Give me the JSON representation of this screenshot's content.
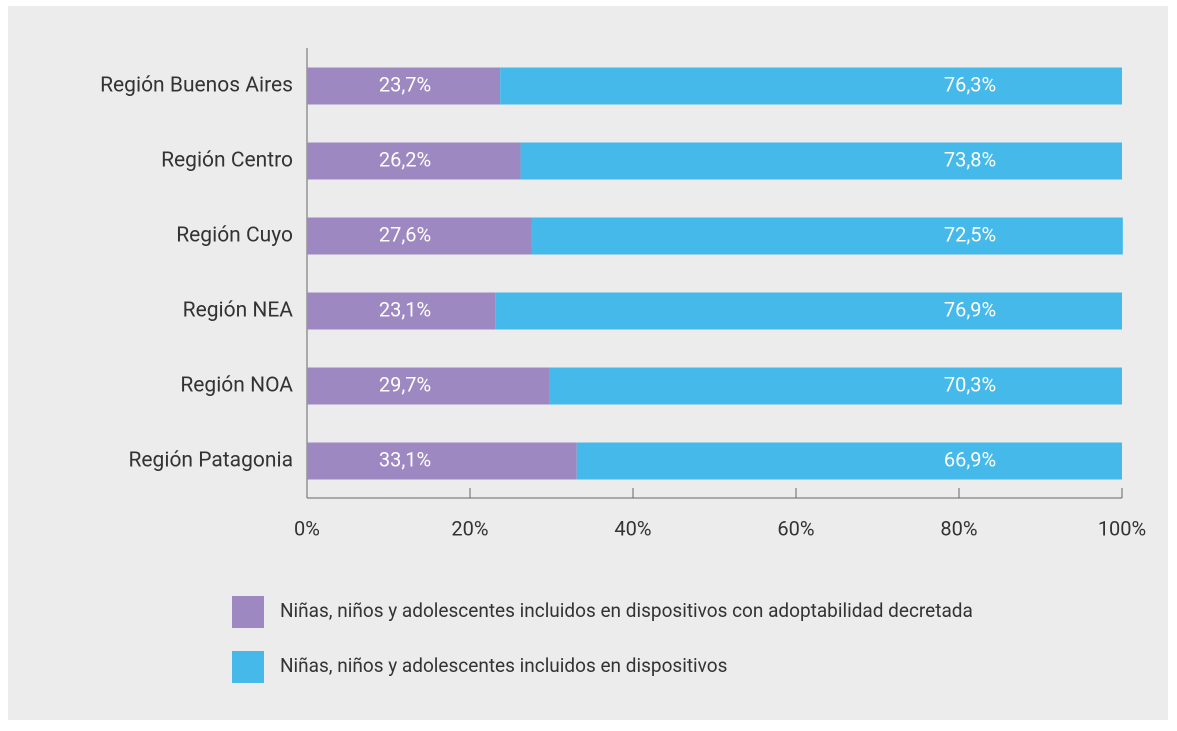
{
  "chart_data": {
    "type": "stacked_bar_horizontal",
    "categories": [
      "Región Buenos Aires",
      "Región Centro",
      "Región Cuyo",
      "Región NEA",
      "Región NOA",
      "Región Patagonia"
    ],
    "series": [
      {
        "name": "Niñas, niños y adolescentes incluidos en dispositivos con adoptabilidad decretada",
        "color": "#9e88c2",
        "values": [
          23.7,
          26.2,
          27.6,
          23.1,
          29.7,
          33.1
        ],
        "value_labels": [
          "23,7%",
          "26,2%",
          "27,6%",
          "23,1%",
          "29,7%",
          "33,1%"
        ]
      },
      {
        "name": "Niñas, niños y adolescentes incluidos en dispositivos",
        "color": "#44b9ea",
        "values": [
          76.3,
          73.8,
          72.5,
          76.9,
          70.3,
          66.9
        ],
        "value_labels": [
          "76,3%",
          "73,8%",
          "72,5%",
          "76,9%",
          "70,3%",
          "66,9%"
        ]
      }
    ],
    "xlim": [
      0,
      100
    ],
    "xticks": [
      {
        "value": 0,
        "label": "0%"
      },
      {
        "value": 20,
        "label": "20%"
      },
      {
        "value": 40,
        "label": "40%"
      },
      {
        "value": 60,
        "label": "60%"
      },
      {
        "value": 80,
        "label": "80%"
      },
      {
        "value": 100,
        "label": "100%"
      }
    ]
  }
}
